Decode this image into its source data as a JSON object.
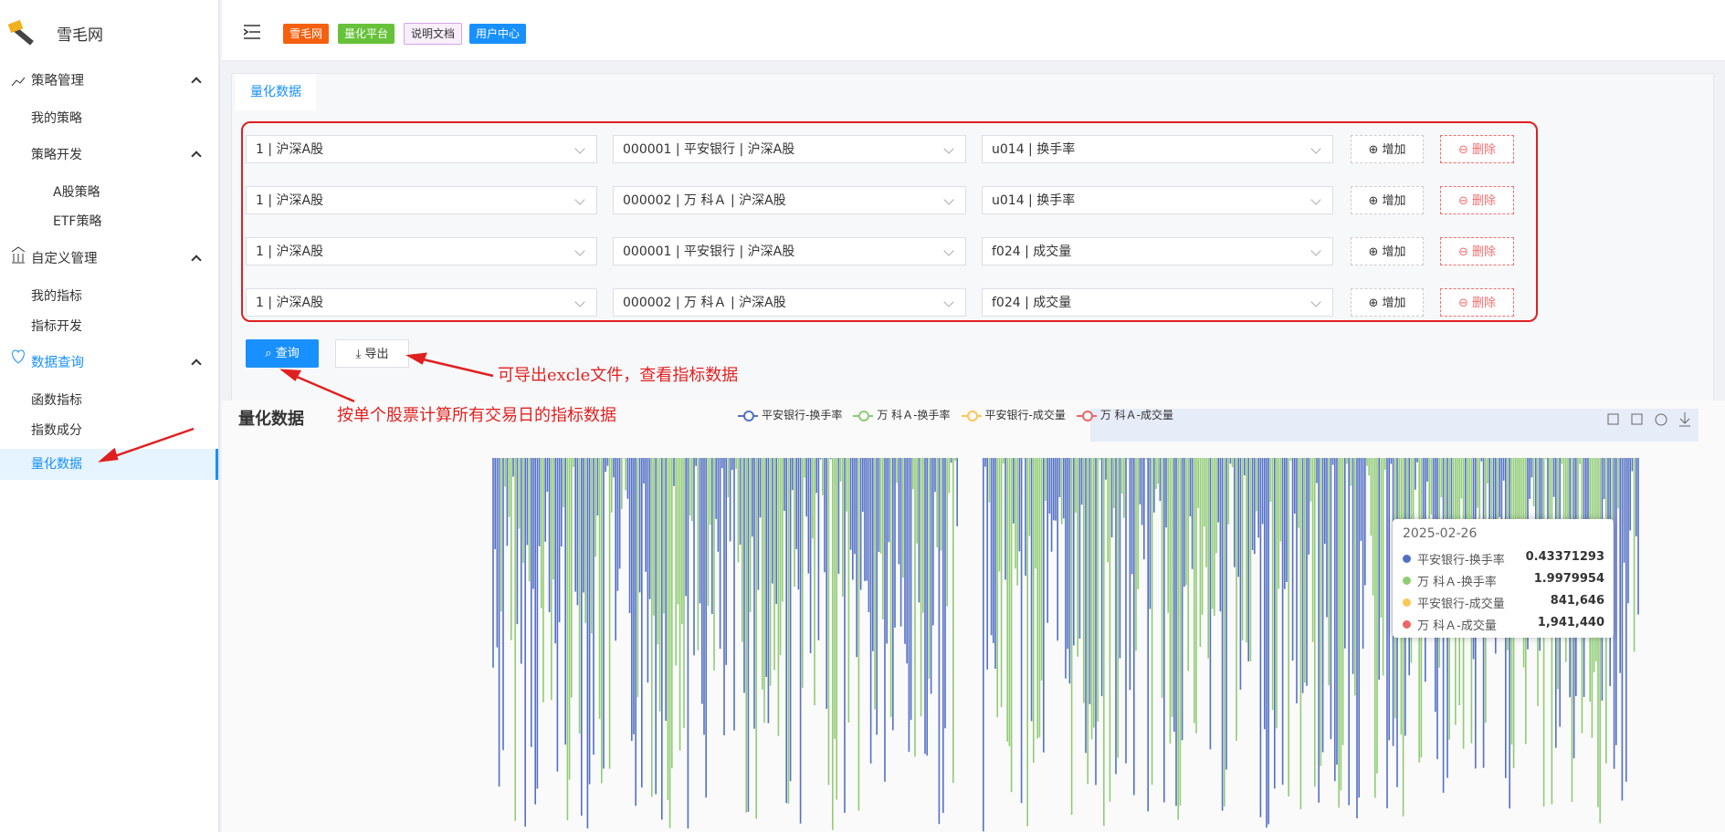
{
  "sidebar": {
    "brand": "雪毛网",
    "menu": [
      {
        "label": "策略管理",
        "items": [
          "我的策略",
          "策略开发"
        ],
        "subitems": [
          "A股策略",
          "ETF策略"
        ]
      },
      {
        "label": "自定义管理",
        "items": [
          "我的指标",
          "指标开发"
        ]
      },
      {
        "label": "数据查询",
        "items": [
          "函数指标",
          "指数成分",
          "量化数据"
        ]
      }
    ]
  },
  "header": {
    "tags": [
      "雪毛网",
      "量化平台",
      "说明文档",
      "用户中心"
    ]
  },
  "tab": "量化数据",
  "form": {
    "rows": [
      [
        "1 | 沪深A股",
        "000001 | 平安银行 | 沪深A股",
        "u014 | 换手率"
      ],
      [
        "1 | 沪深A股",
        "000002 | 万 科Ａ | 沪深A股",
        "u014 | 换手率"
      ],
      [
        "1 | 沪深A股",
        "000001 | 平安银行 | 沪深A股",
        "f024 | 成交量"
      ],
      [
        "1 | 沪深A股",
        "000002 | 万 科Ａ | 沪深A股",
        "f024 | 成交量"
      ]
    ],
    "add": "增加",
    "remove": "删除",
    "query": "查询",
    "export": "导出"
  },
  "annotations": [
    "可导出excle文件，查看指标数据",
    "按单个股票计算所有交易日的指标数据"
  ],
  "chart": {
    "title": "量化数据",
    "legend": [
      {
        "name": "平安银行-换手率",
        "color": "#5470c6"
      },
      {
        "name": "万 科Ａ-换手率",
        "color": "#91cc75"
      },
      {
        "name": "平安银行-成交量",
        "color": "#fac858"
      },
      {
        "name": "万 科Ａ-成交量",
        "color": "#ee6666"
      }
    ],
    "tooltip": {
      "date": "2025-02-26",
      "values": [
        "0.43371293",
        "1.9979954",
        "841,646",
        "1,941,440"
      ]
    }
  }
}
